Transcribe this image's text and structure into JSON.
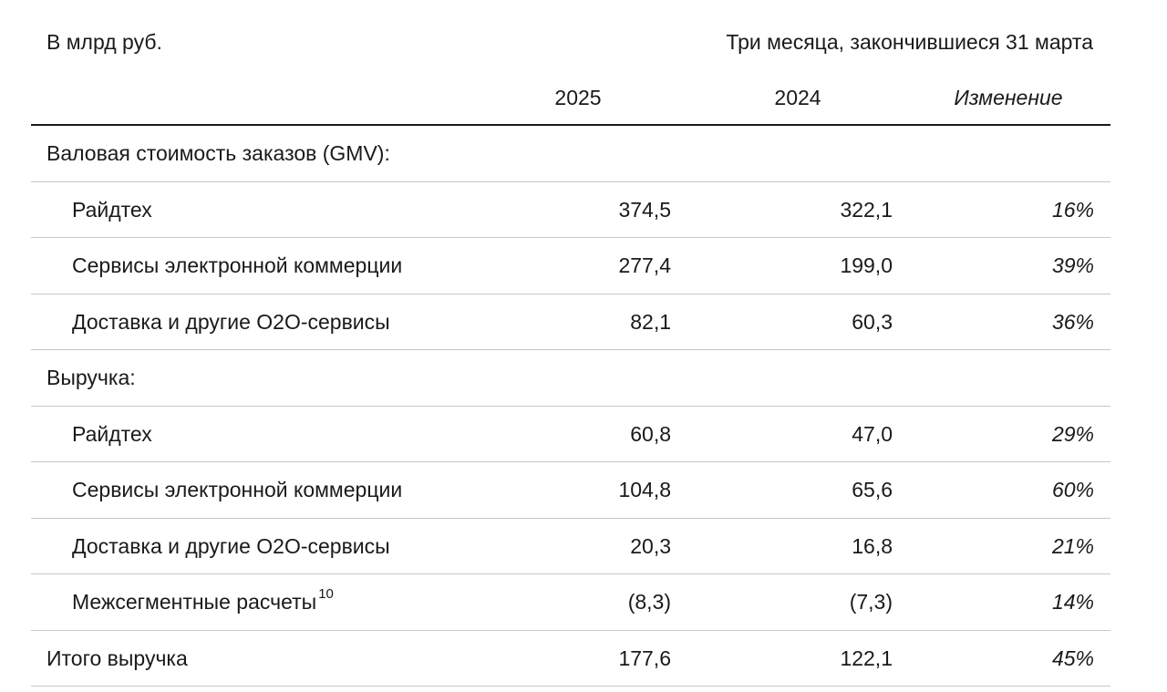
{
  "header": {
    "units": "В млрд руб.",
    "period": "Три месяца, закончившиеся 31 марта",
    "col_2025": "2025",
    "col_2024": "2024",
    "col_change": "Изменение"
  },
  "rows": [
    {
      "label": "Валовая стоимость заказов (GMV):",
      "v2025": "",
      "v2024": "",
      "change": ""
    },
    {
      "label": "Райдтех",
      "v2025": "374,5",
      "v2024": "322,1",
      "change": "16%"
    },
    {
      "label": "Сервисы электронной коммерции",
      "v2025": "277,4",
      "v2024": "199,0",
      "change": "39%"
    },
    {
      "label": "Доставка и другие O2O-сервисы",
      "v2025": "82,1",
      "v2024": "60,3",
      "change": "36%"
    },
    {
      "label": "Выручка:",
      "v2025": "",
      "v2024": "",
      "change": ""
    },
    {
      "label": "Райдтех",
      "v2025": "60,8",
      "v2024": "47,0",
      "change": "29%"
    },
    {
      "label": "Сервисы электронной коммерции",
      "v2025": "104,8",
      "v2024": "65,6",
      "change": "60%"
    },
    {
      "label": "Доставка и другие O2O-сервисы",
      "v2025": "20,3",
      "v2024": "16,8",
      "change": "21%"
    },
    {
      "label": "Межсегментные расчеты",
      "footnote": "10",
      "v2025": "(8,3)",
      "v2024": "(7,3)",
      "change": "14%"
    },
    {
      "label": "Итого выручка",
      "v2025": "177,6",
      "v2024": "122,1",
      "change": "45%"
    }
  ]
}
